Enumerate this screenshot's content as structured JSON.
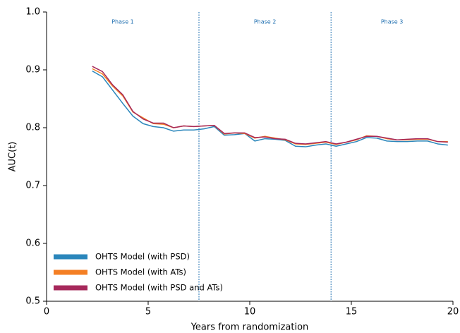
{
  "chart_data": {
    "type": "line",
    "xlabel": "Years from randomization",
    "ylabel": "AUC(t)",
    "x": [
      2.25,
      2.75,
      3.25,
      3.75,
      4.25,
      4.75,
      5.25,
      5.75,
      6.25,
      6.75,
      7.25,
      7.75,
      8.25,
      8.75,
      9.25,
      9.75,
      10.25,
      10.75,
      11.25,
      11.75,
      12.25,
      12.75,
      13.25,
      13.75,
      14.25,
      14.75,
      15.25,
      15.75,
      16.25,
      16.75,
      17.25,
      17.75,
      18.25,
      18.75,
      19.25,
      19.75
    ],
    "series": [
      {
        "name": "OHTS Model (with PSD)",
        "color": "#2a86bb",
        "values": [
          0.898,
          0.888,
          0.865,
          0.842,
          0.82,
          0.807,
          0.802,
          0.8,
          0.794,
          0.796,
          0.796,
          0.798,
          0.802,
          0.787,
          0.788,
          0.79,
          0.777,
          0.781,
          0.78,
          0.778,
          0.768,
          0.767,
          0.77,
          0.772,
          0.768,
          0.772,
          0.776,
          0.783,
          0.782,
          0.777,
          0.776,
          0.776,
          0.777,
          0.777,
          0.772,
          0.77
        ]
      },
      {
        "name": "OHTS Model (with ATs)",
        "color": "#f47f24",
        "values": [
          0.902,
          0.893,
          0.872,
          0.855,
          0.827,
          0.817,
          0.807,
          0.806,
          0.8,
          0.803,
          0.802,
          0.803,
          0.804,
          0.789,
          0.791,
          0.79,
          0.782,
          0.785,
          0.782,
          0.779,
          0.772,
          0.771,
          0.773,
          0.775,
          0.771,
          0.775,
          0.779,
          0.786,
          0.785,
          0.781,
          0.779,
          0.779,
          0.78,
          0.78,
          0.776,
          0.776
        ]
      },
      {
        "name": "OHTS Model (with PSD and ATs)",
        "color": "#a6285b",
        "values": [
          0.906,
          0.897,
          0.874,
          0.857,
          0.828,
          0.815,
          0.808,
          0.808,
          0.8,
          0.803,
          0.802,
          0.803,
          0.804,
          0.79,
          0.791,
          0.791,
          0.783,
          0.784,
          0.781,
          0.78,
          0.773,
          0.772,
          0.774,
          0.776,
          0.772,
          0.775,
          0.78,
          0.785,
          0.785,
          0.782,
          0.779,
          0.78,
          0.781,
          0.781,
          0.776,
          0.775
        ]
      }
    ],
    "xlim": [
      0,
      20
    ],
    "xticks": [
      0,
      5,
      10,
      15,
      20
    ],
    "ylim": [
      0.5,
      1
    ],
    "yticks": [
      0.5,
      0.6,
      0.7,
      0.8,
      0.9,
      {
        "value": 1,
        "label": "1.0"
      }
    ],
    "phases": [
      "Phase 1",
      "Phase 2",
      "Phase 3"
    ],
    "phase_boundaries": [
      7.5,
      14
    ],
    "phase_color": "#1f6fb0",
    "legend": "lower left",
    "grid": false
  }
}
